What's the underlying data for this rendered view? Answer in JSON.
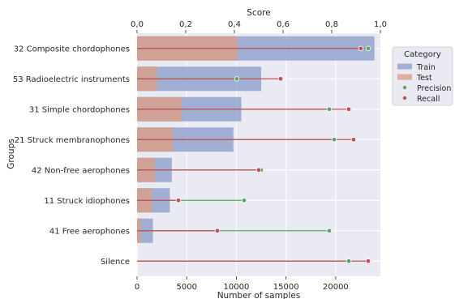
{
  "chart_data": {
    "type": "bar",
    "orientation": "horizontal",
    "categories": [
      "32 Composite chordophones",
      "53 Radioelectric instruments",
      "31 Simple chordophones",
      "21 Struck membranophones",
      "42 Non-free aerophones",
      "11 Struck idiophones",
      "41 Free aerophones",
      "Silence"
    ],
    "ylabel": "Groups",
    "bottom_axis": {
      "label": "Number of samples",
      "lim": [
        0,
        24500
      ],
      "ticks": [
        0,
        5000,
        10000,
        15000,
        20000
      ],
      "tick_labels": [
        "0",
        "5000",
        "10000",
        "15000",
        "20000"
      ]
    },
    "top_axis": {
      "label": "Score",
      "lim": [
        0,
        1.0
      ],
      "ticks": [
        0,
        0.2,
        0.4,
        0.6,
        0.8,
        1.0
      ],
      "tick_labels": [
        "0,0",
        "0,2",
        "0,4",
        "0,6",
        "0,8",
        "1,0"
      ]
    },
    "bar_series": [
      {
        "name": "Train",
        "color": "#8da0cb",
        "values": [
          23900,
          12500,
          10500,
          9700,
          3500,
          3300,
          1600,
          0
        ]
      },
      {
        "name": "Test",
        "color": "#d8a08a",
        "values": [
          10100,
          2000,
          4500,
          3600,
          1800,
          1500,
          400,
          0
        ]
      }
    ],
    "score_series": [
      {
        "name": "Precision",
        "color": "#55a868",
        "values": [
          0.95,
          0.41,
          0.79,
          0.81,
          0.51,
          0.44,
          0.79,
          0.87
        ]
      },
      {
        "name": "Recall",
        "color": "#c44e52",
        "values": [
          0.92,
          0.59,
          0.87,
          0.89,
          0.5,
          0.17,
          0.33,
          0.95
        ]
      }
    ],
    "legend": {
      "title": "Category",
      "position": "right"
    },
    "grid": true
  }
}
